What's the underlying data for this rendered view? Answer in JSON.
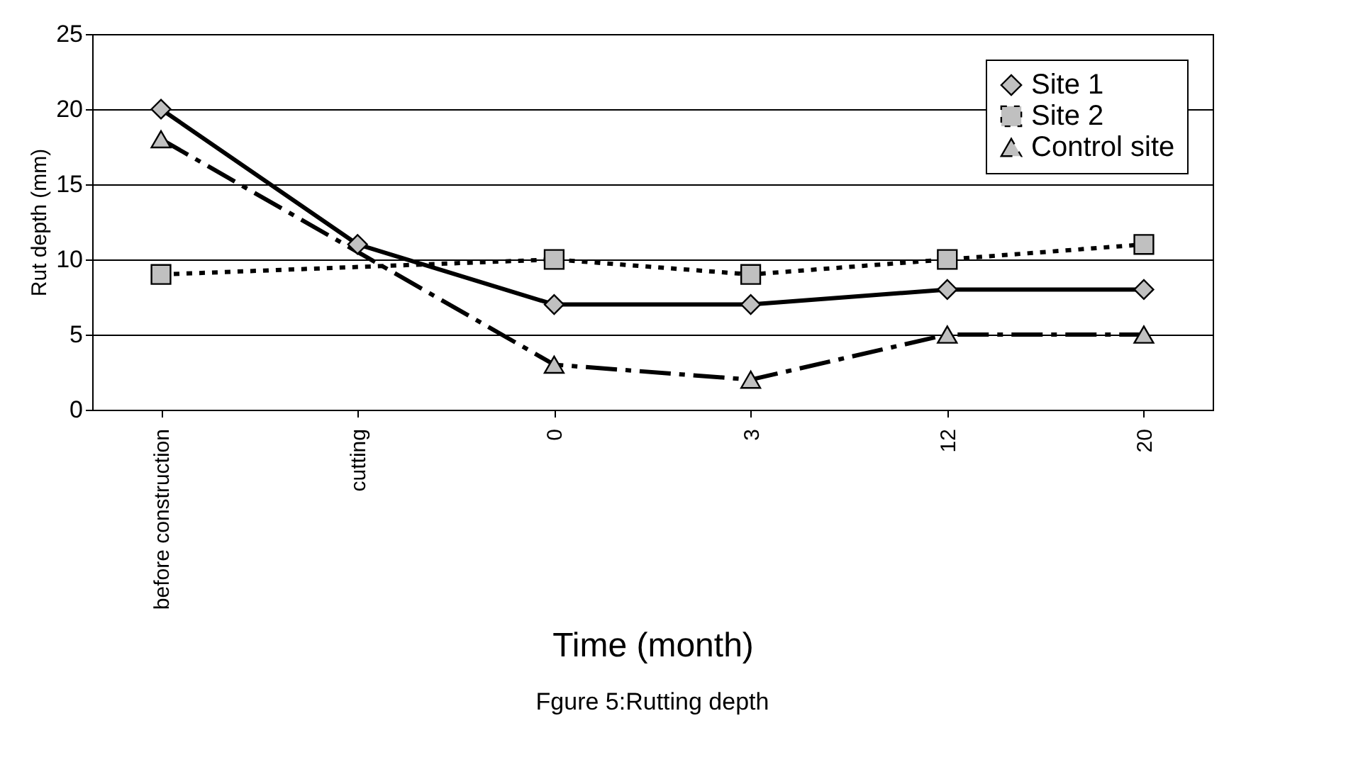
{
  "chart_data": {
    "type": "line",
    "title": "Fgure 5:Rutting depth",
    "xlabel": "Time (month)",
    "ylabel": "Rut depth (mm)",
    "categories": [
      "before construction",
      "cutting",
      "0",
      "3",
      "12",
      "20"
    ],
    "series": [
      {
        "name": "Site 1",
        "color": "#000000",
        "line_style": "solid",
        "marker": "diamond",
        "values": [
          20,
          11,
          7,
          7,
          8,
          8
        ]
      },
      {
        "name": "Site 2",
        "color": "#000000",
        "line_style": "dotted",
        "marker": "square",
        "values": [
          9,
          null,
          10,
          9,
          10,
          11
        ]
      },
      {
        "name": "Control site",
        "color": "#000000",
        "line_style": "dashed",
        "marker": "triangle",
        "values": [
          18,
          null,
          3,
          2,
          5,
          5
        ]
      }
    ],
    "ylim": [
      0,
      25
    ],
    "yticks": [
      0,
      5,
      10,
      15,
      20,
      25
    ],
    "grid": "y",
    "legend": "top right"
  }
}
